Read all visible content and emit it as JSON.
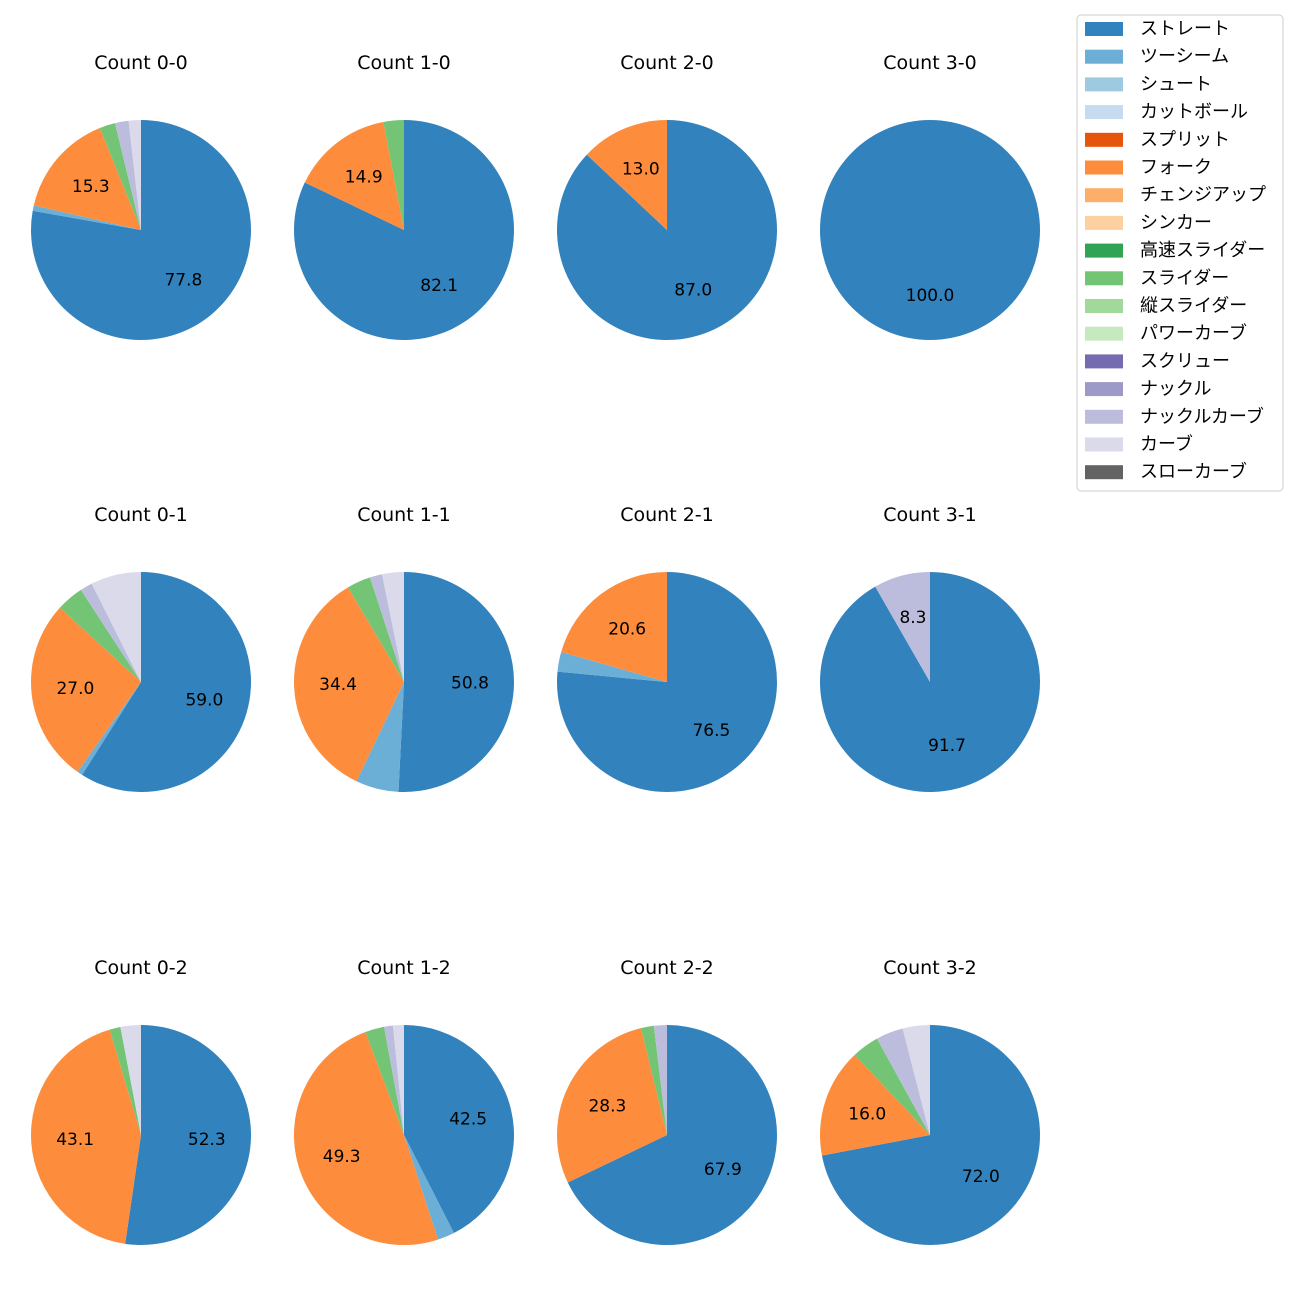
{
  "chart_data": {
    "type": "pie",
    "legend": {
      "placement": "top-right",
      "entries": [
        {
          "name": "ストレート",
          "color": "#3182bd"
        },
        {
          "name": "ツーシーム",
          "color": "#6baed6"
        },
        {
          "name": "シュート",
          "color": "#9ecae1"
        },
        {
          "name": "カットボール",
          "color": "#c6dbef"
        },
        {
          "name": "スプリット",
          "color": "#e6550d"
        },
        {
          "name": "フォーク",
          "color": "#fd8d3c"
        },
        {
          "name": "チェンジアップ",
          "color": "#fdae6b"
        },
        {
          "name": "シンカー",
          "color": "#fdd0a2"
        },
        {
          "name": "高速スライダー",
          "color": "#31a354"
        },
        {
          "name": "スライダー",
          "color": "#74c476"
        },
        {
          "name": "縦スライダー",
          "color": "#a1d99b"
        },
        {
          "name": "パワーカーブ",
          "color": "#c7e9c0"
        },
        {
          "name": "スクリュー",
          "color": "#756bb1"
        },
        {
          "name": "ナックル",
          "color": "#9e9ac8"
        },
        {
          "name": "ナックルカーブ",
          "color": "#bcbddc"
        },
        {
          "name": "カーブ",
          "color": "#dadaeb"
        },
        {
          "name": "スローカーブ",
          "color": "#636363"
        }
      ]
    },
    "charts": [
      {
        "title": "Count 0-0",
        "slices": [
          {
            "name": "ストレート",
            "value": 77.8,
            "label": "77.8"
          },
          {
            "name": "ツーシーム",
            "value": 0.8,
            "label": ""
          },
          {
            "name": "フォーク",
            "value": 15.3,
            "label": "15.3"
          },
          {
            "name": "スライダー",
            "value": 2.3,
            "label": ""
          },
          {
            "name": "ナックルカーブ",
            "value": 2.0,
            "label": ""
          },
          {
            "name": "カーブ",
            "value": 1.8,
            "label": ""
          }
        ]
      },
      {
        "title": "Count 1-0",
        "slices": [
          {
            "name": "ストレート",
            "value": 82.1,
            "label": "82.1"
          },
          {
            "name": "フォーク",
            "value": 14.9,
            "label": "14.9"
          },
          {
            "name": "スライダー",
            "value": 3.0,
            "label": ""
          }
        ]
      },
      {
        "title": "Count 2-0",
        "slices": [
          {
            "name": "ストレート",
            "value": 87.0,
            "label": "87.0"
          },
          {
            "name": "フォーク",
            "value": 13.0,
            "label": "13.0"
          }
        ]
      },
      {
        "title": "Count 3-0",
        "slices": [
          {
            "name": "ストレート",
            "value": 100.0,
            "label": "100.0"
          }
        ]
      },
      {
        "title": "Count 0-1",
        "slices": [
          {
            "name": "ストレート",
            "value": 59.0,
            "label": "59.0"
          },
          {
            "name": "ツーシーム",
            "value": 0.8,
            "label": ""
          },
          {
            "name": "フォーク",
            "value": 27.0,
            "label": "27.0"
          },
          {
            "name": "スライダー",
            "value": 4.0,
            "label": ""
          },
          {
            "name": "ナックルカーブ",
            "value": 1.8,
            "label": ""
          },
          {
            "name": "カーブ",
            "value": 7.4,
            "label": ""
          }
        ]
      },
      {
        "title": "Count 1-1",
        "slices": [
          {
            "name": "ストレート",
            "value": 50.8,
            "label": "50.8"
          },
          {
            "name": "ツーシーム",
            "value": 6.3,
            "label": ""
          },
          {
            "name": "フォーク",
            "value": 34.4,
            "label": "34.4"
          },
          {
            "name": "スライダー",
            "value": 3.5,
            "label": ""
          },
          {
            "name": "ナックルカーブ",
            "value": 1.8,
            "label": ""
          },
          {
            "name": "カーブ",
            "value": 3.2,
            "label": ""
          }
        ]
      },
      {
        "title": "Count 2-1",
        "slices": [
          {
            "name": "ストレート",
            "value": 76.5,
            "label": "76.5"
          },
          {
            "name": "ツーシーム",
            "value": 2.9,
            "label": ""
          },
          {
            "name": "フォーク",
            "value": 20.6,
            "label": "20.6"
          }
        ]
      },
      {
        "title": "Count 3-1",
        "slices": [
          {
            "name": "ストレート",
            "value": 91.7,
            "label": "91.7"
          },
          {
            "name": "ナックルカーブ",
            "value": 8.3,
            "label": "8.3"
          }
        ]
      },
      {
        "title": "Count 0-2",
        "slices": [
          {
            "name": "ストレート",
            "value": 52.3,
            "label": "52.3"
          },
          {
            "name": "フォーク",
            "value": 43.1,
            "label": "43.1"
          },
          {
            "name": "スライダー",
            "value": 1.6,
            "label": ""
          },
          {
            "name": "カーブ",
            "value": 3.0,
            "label": ""
          }
        ]
      },
      {
        "title": "Count 1-2",
        "slices": [
          {
            "name": "ストレート",
            "value": 42.5,
            "label": "42.5"
          },
          {
            "name": "ツーシーム",
            "value": 2.5,
            "label": ""
          },
          {
            "name": "フォーク",
            "value": 49.3,
            "label": "49.3"
          },
          {
            "name": "スライダー",
            "value": 2.8,
            "label": ""
          },
          {
            "name": "ナックルカーブ",
            "value": 1.3,
            "label": ""
          },
          {
            "name": "カーブ",
            "value": 1.6,
            "label": ""
          }
        ]
      },
      {
        "title": "Count 2-2",
        "slices": [
          {
            "name": "ストレート",
            "value": 67.9,
            "label": "67.9"
          },
          {
            "name": "フォーク",
            "value": 28.3,
            "label": "28.3"
          },
          {
            "name": "スライダー",
            "value": 1.9,
            "label": ""
          },
          {
            "name": "ナックルカーブ",
            "value": 1.9,
            "label": ""
          }
        ]
      },
      {
        "title": "Count 3-2",
        "slices": [
          {
            "name": "ストレート",
            "value": 72.0,
            "label": "72.0"
          },
          {
            "name": "フォーク",
            "value": 16.0,
            "label": "16.0"
          },
          {
            "name": "スライダー",
            "value": 4.0,
            "label": ""
          },
          {
            "name": "ナックルカーブ",
            "value": 4.0,
            "label": ""
          },
          {
            "name": "カーブ",
            "value": 4.0,
            "label": ""
          }
        ]
      }
    ]
  }
}
